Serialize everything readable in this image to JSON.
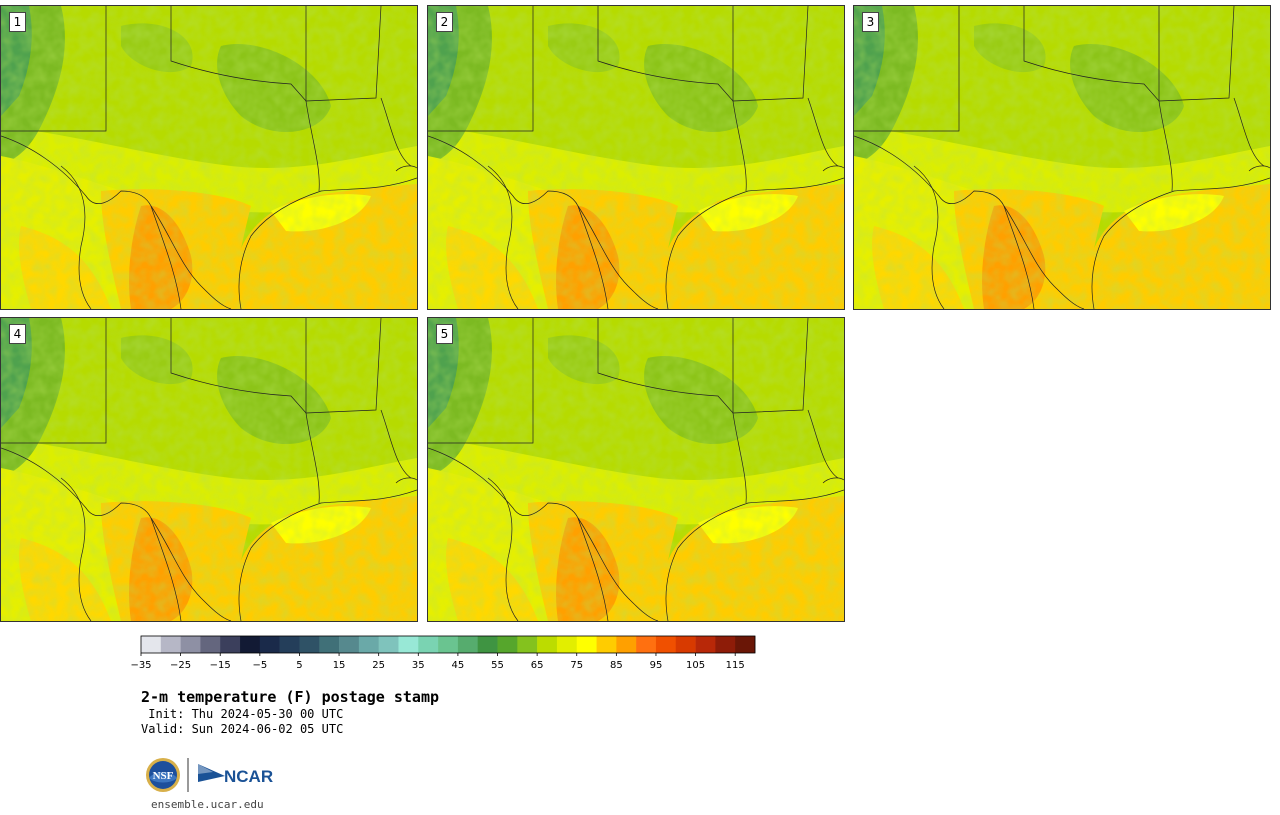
{
  "panels": [
    {
      "label": "1"
    },
    {
      "label": "2"
    },
    {
      "label": "3"
    },
    {
      "label": "4"
    },
    {
      "label": "5"
    }
  ],
  "colorbar": {
    "min": -35,
    "max": 120,
    "step": 5,
    "tick_labels": [
      "−35",
      "−25",
      "−15",
      "−5",
      "5",
      "15",
      "25",
      "35",
      "45",
      "55",
      "65",
      "75",
      "85",
      "95",
      "105",
      "115"
    ],
    "colors": [
      "#e4e6ec",
      "#b6b7c6",
      "#8e90a4",
      "#64667e",
      "#3b3f5c",
      "#121a34",
      "#1a2a4a",
      "#243e5a",
      "#2f5266",
      "#407078",
      "#56898e",
      "#6aa9a8",
      "#7fc3bc",
      "#98e8d6",
      "#7ad3b2",
      "#6ac490",
      "#56ac6e",
      "#3f9442",
      "#56a62c",
      "#84c21e",
      "#bcdc00",
      "#e2ee00",
      "#ffff00",
      "#ffcc00",
      "#ffa000",
      "#ff7010",
      "#f05000",
      "#d83a00",
      "#b82808",
      "#8e1c08",
      "#6a1606"
    ]
  },
  "title": "2-m temperature (F) postage stamp",
  "init": " Init: Thu 2024-05-30 00 UTC",
  "valid": "Valid: Sun 2024-06-02 05 UTC",
  "logos": {
    "nsf": "NSF",
    "ncar": "NCAR"
  },
  "site": "ensemble.ucar.edu"
}
